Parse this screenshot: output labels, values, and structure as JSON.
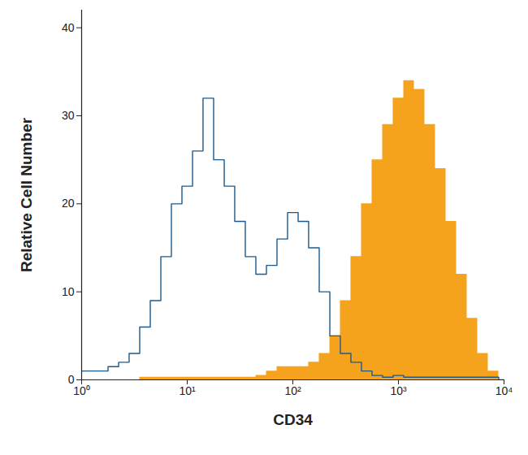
{
  "chart_data": {
    "type": "line",
    "x_label": "CD34",
    "y_label": "Relative Cell Number",
    "log": "x",
    "grid": false,
    "xlim": [
      1,
      10000
    ],
    "xticks": [
      {
        "value": 1,
        "label": "10⁰"
      },
      {
        "value": 10,
        "label": "10¹"
      },
      {
        "value": 100,
        "label": "10²"
      },
      {
        "value": 1000,
        "label": "10³"
      },
      {
        "value": 10000,
        "label": "10⁴"
      }
    ],
    "ylim": [
      0,
      42
    ],
    "yticks": [
      0,
      10,
      20,
      30,
      40
    ],
    "x": [
      1,
      1.26,
      1.58,
      2,
      2.51,
      3.16,
      3.98,
      5.01,
      6.31,
      7.94,
      10,
      12.6,
      15.8,
      20,
      25.1,
      31.6,
      39.8,
      50.1,
      63.1,
      79.4,
      100,
      126,
      158,
      200,
      251,
      316,
      398,
      501,
      631,
      794,
      1000,
      1259,
      1585,
      1995,
      2512,
      3162,
      3981,
      5012,
      6310,
      7943,
      10000
    ],
    "series": [
      {
        "type": "area",
        "color": "#f5a31d",
        "line_style": "step",
        "values": [
          0,
          0,
          0,
          0,
          0,
          0,
          0.3,
          0.3,
          0.3,
          0.3,
          0.3,
          0.3,
          0.3,
          0.3,
          0.3,
          0.3,
          0.3,
          0.5,
          1,
          1.5,
          1.5,
          1.5,
          2,
          3,
          5,
          9,
          14,
          20,
          25,
          29,
          32,
          34,
          33,
          29,
          24,
          18,
          12,
          7,
          3,
          1,
          0
        ]
      },
      {
        "type": "line",
        "color": "#1b5a8e",
        "line_style": "step",
        "values": [
          1,
          1,
          1,
          1.5,
          2,
          3,
          6,
          9,
          14,
          20,
          22,
          26,
          32,
          25,
          22,
          18,
          14,
          12,
          13,
          16,
          19,
          18,
          15,
          10,
          5,
          3,
          2,
          1,
          0.5,
          0.3,
          0.5,
          0.3,
          0.3,
          0.3,
          0.3,
          0.3,
          0.3,
          0.3,
          0.3,
          0.3,
          0
        ]
      }
    ]
  }
}
